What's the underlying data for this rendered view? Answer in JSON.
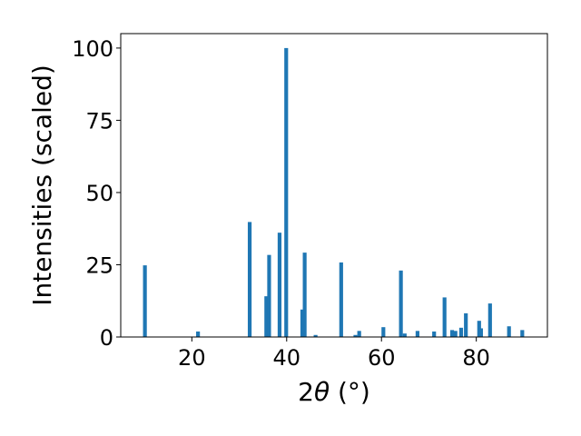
{
  "chart_data": {
    "type": "bar",
    "xlabel": {
      "prefix": "2",
      "symbol": "θ",
      "suffix": " (°)"
    },
    "ylabel": "Intensities (scaled)",
    "xlim": [
      5,
      95
    ],
    "ylim": [
      0,
      105
    ],
    "xticks": [
      20,
      40,
      60,
      80
    ],
    "yticks": [
      0,
      25,
      50,
      75,
      100
    ],
    "bar_width_deg": 0.8,
    "bar_color": "#1f77b4",
    "grid": false,
    "legend": "none",
    "x": [
      10.1,
      21.3,
      32.2,
      35.7,
      36.3,
      38.5,
      39.9,
      43.3,
      43.8,
      46.1,
      51.5,
      54.5,
      55.3,
      60.4,
      64.1,
      64.9,
      67.6,
      71.1,
      73.3,
      74.9,
      75.6,
      76.8,
      77.8,
      80.6,
      81.0,
      82.9,
      86.9,
      89.7
    ],
    "values": [
      24.8,
      1.9,
      39.8,
      14.1,
      28.4,
      36.1,
      100.0,
      9.5,
      29.2,
      0.7,
      25.8,
      0.7,
      2.1,
      3.4,
      23.0,
      1.2,
      2.1,
      1.9,
      13.7,
      2.4,
      2.1,
      3.2,
      8.2,
      5.6,
      3.0,
      11.6,
      3.7,
      2.4
    ]
  }
}
